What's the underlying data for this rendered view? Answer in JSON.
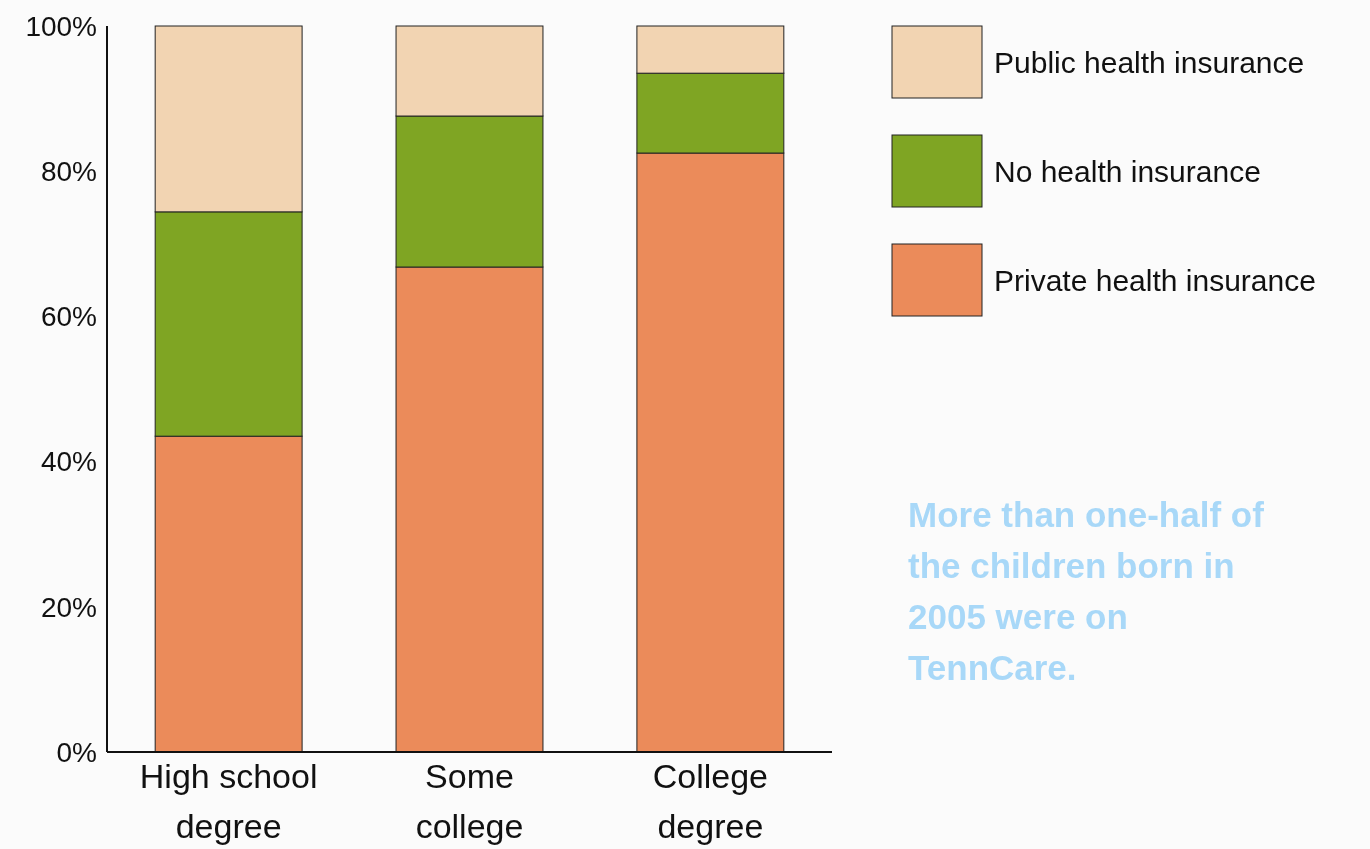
{
  "chart_data": {
    "type": "bar",
    "stacked": true,
    "categories": [
      "High school degree",
      "Some college",
      "College degree"
    ],
    "series": [
      {
        "name": "Private health insurance",
        "color": "#eb8b5a",
        "values": [
          43.5,
          66.8,
          82.5
        ]
      },
      {
        "name": "No health insurance",
        "color": "#7fa523",
        "values": [
          30.9,
          20.8,
          11.0
        ]
      },
      {
        "name": "Public health insurance",
        "color": "#f2d4b2",
        "values": [
          25.6,
          12.4,
          6.5
        ]
      }
    ],
    "ylim": [
      0,
      100
    ],
    "yticks": [
      {
        "value": 0,
        "label": "0%"
      },
      {
        "value": 20,
        "label": "20%"
      },
      {
        "value": 40,
        "label": "40%"
      },
      {
        "value": 60,
        "label": "60%"
      },
      {
        "value": 80,
        "label": "80%"
      },
      {
        "value": 100,
        "label": "100%"
      }
    ],
    "grid": false,
    "legend": "right",
    "annotations": [
      "More than one-half of the children born in 2005 were on TennCare."
    ]
  }
}
